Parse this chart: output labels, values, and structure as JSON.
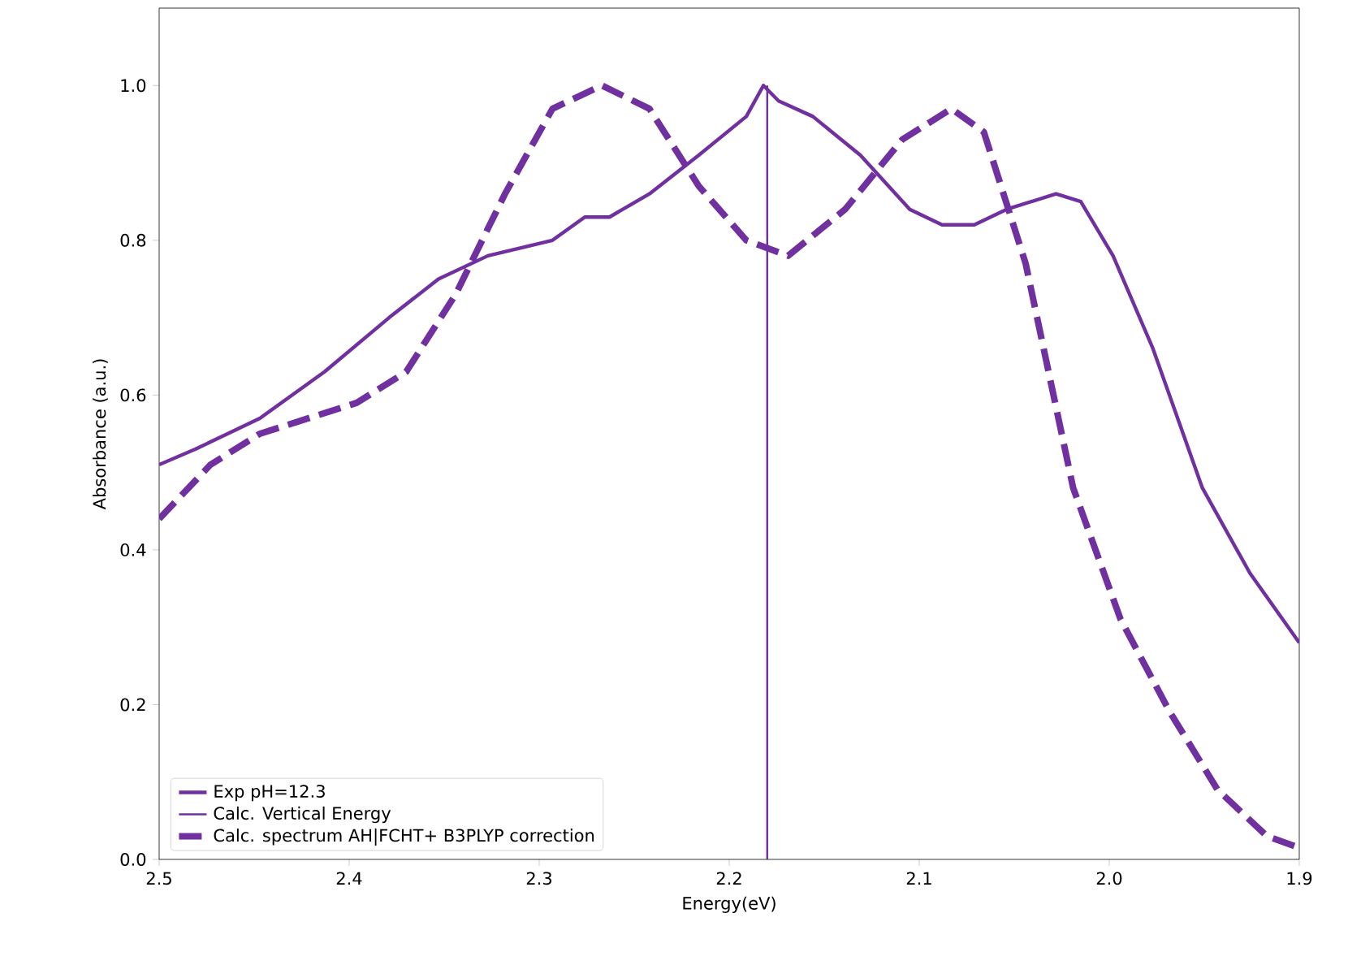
{
  "chart_data": {
    "type": "line",
    "xlabel": "Energy(eV)",
    "ylabel": "Absorbance (a.u.)",
    "xlim": [
      2.5,
      1.9
    ],
    "ylim": [
      0,
      1.1
    ],
    "xticks": [
      2.5,
      2.4,
      2.3,
      2.2,
      2.1,
      {
        "value": 2.0,
        "label": "2.0"
      },
      1.9
    ],
    "yticks": [
      {
        "value": 0,
        "label": "0.0"
      },
      0.2,
      0.4,
      0.6,
      0.8,
      {
        "value": 1,
        "label": "1.0"
      }
    ],
    "legend": "bottom left",
    "grid": false,
    "series": [
      {
        "name": "Exp pH=12.3",
        "color": "#7030a0",
        "line_style": "solid",
        "x": [
          2.5,
          2.481,
          2.464,
          2.447,
          2.413,
          2.379,
          2.353,
          2.327,
          2.293,
          2.276,
          2.263,
          2.242,
          2.216,
          2.191,
          2.182,
          2.174,
          2.156,
          2.131,
          2.105,
          2.088,
          2.071,
          2.054,
          2.028,
          2.015,
          1.998,
          1.977,
          1.951,
          1.926,
          1.9
        ],
        "values": [
          0.51,
          0.53,
          0.55,
          0.57,
          0.63,
          0.7,
          0.75,
          0.78,
          0.8,
          0.83,
          0.83,
          0.86,
          0.91,
          0.96,
          1.0,
          0.98,
          0.96,
          0.91,
          0.84,
          0.82,
          0.82,
          0.84,
          0.86,
          0.85,
          0.78,
          0.66,
          0.48,
          0.37,
          0.28
        ]
      },
      {
        "name": "Calc. Vertical Energy",
        "color": "#7030a0",
        "line_style": "solid",
        "x": [
          2.18,
          2.18
        ],
        "values": [
          0,
          1.0
        ]
      },
      {
        "name": "Calc. spectrum AH|FCHT+ B3PLYP correction",
        "color": "#7030a0",
        "line_style": "dashed",
        "x": [
          2.5,
          2.473,
          2.447,
          2.396,
          2.37,
          2.344,
          2.318,
          2.293,
          2.267,
          2.242,
          2.216,
          2.191,
          2.169,
          2.139,
          2.109,
          2.083,
          2.066,
          2.044,
          2.019,
          1.994,
          1.968,
          1.943,
          1.917,
          1.9
        ],
        "values": [
          0.44,
          0.51,
          0.55,
          0.59,
          0.63,
          0.73,
          0.86,
          0.97,
          1.0,
          0.97,
          0.87,
          0.8,
          0.78,
          0.84,
          0.93,
          0.97,
          0.94,
          0.77,
          0.48,
          0.31,
          0.19,
          0.09,
          0.03,
          0.015
        ]
      }
    ]
  }
}
